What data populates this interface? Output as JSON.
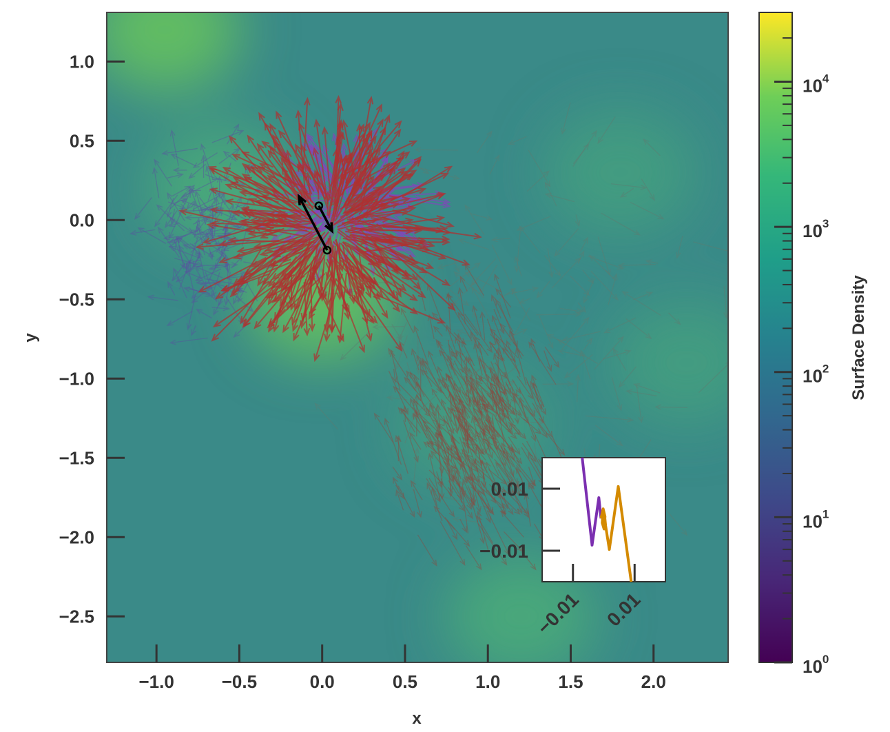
{
  "chart_data": {
    "type": "quiver",
    "xlabel": "x",
    "ylabel": "y",
    "xlim": [
      -1.3,
      2.45
    ],
    "ylim": [
      -2.79,
      1.31
    ],
    "xticks": [
      -1.0,
      -0.5,
      0.0,
      0.5,
      1.0,
      1.5,
      2.0
    ],
    "xtick_labels": [
      "−1.0",
      "−0.5",
      "0.0",
      "0.5",
      "1.0",
      "1.5",
      "2.0"
    ],
    "yticks": [
      1.0,
      0.5,
      0.0,
      -0.5,
      -1.0,
      -1.5,
      -2.0,
      -2.5
    ],
    "ytick_labels": [
      "1.0",
      "0.5",
      "0.0",
      "−0.5",
      "−1.0",
      "−1.5",
      "−2.0",
      "−2.5"
    ],
    "colorbar": {
      "label": "Surface Density",
      "scale": "log",
      "range": [
        1,
        30000
      ],
      "ticks": [
        1,
        10,
        100,
        1000,
        10000
      ],
      "tick_base": "10",
      "tick_exponents": [
        "0",
        "1",
        "2",
        "3",
        "4"
      ],
      "colormap": "viridis"
    },
    "background_density_ridges": [
      {
        "x": -0.95,
        "y": 1.2,
        "log_density": 3.4
      },
      {
        "x": 0.0,
        "y": -0.5,
        "log_density": 3.3
      },
      {
        "x": -0.6,
        "y": 0.2,
        "log_density": 3.0
      },
      {
        "x": 0.9,
        "y": -1.3,
        "log_density": 2.8
      },
      {
        "x": 1.2,
        "y": -2.5,
        "log_density": 2.9
      },
      {
        "x": 1.8,
        "y": 0.3,
        "log_density": 2.6
      },
      {
        "x": 2.2,
        "y": -0.9,
        "log_density": 2.7
      }
    ],
    "arrow_fields": [
      {
        "name": "red-particles",
        "color": "#b03030",
        "center": [
          0.05,
          -0.05
        ],
        "spread": [
          0.25,
          0.25
        ],
        "count": 350,
        "mean_length": 0.35
      },
      {
        "name": "purple-particles",
        "color": "#8a3fc0",
        "center": [
          0.15,
          0.1
        ],
        "spread": [
          0.15,
          0.15
        ],
        "count": 120,
        "mean_length": 0.25
      },
      {
        "name": "blue-gas",
        "color": "#5a50a0",
        "center": [
          -0.7,
          -0.1
        ],
        "spread": [
          0.2,
          0.35
        ],
        "count": 180,
        "mean_length": 0.15
      },
      {
        "name": "red-stream",
        "color": "#8a4a40",
        "center": [
          0.9,
          -1.3
        ],
        "spread": [
          0.3,
          0.45
        ],
        "count": 400,
        "mean_length": 0.2
      },
      {
        "name": "gray-gas",
        "color": "#607a70",
        "center": [
          1.3,
          -0.6
        ],
        "spread": [
          0.7,
          0.8
        ],
        "count": 150,
        "mean_length": 0.18
      }
    ],
    "highlight_arrows": [
      {
        "from": [
          0.03,
          -0.19
        ],
        "to": [
          -0.14,
          0.15
        ],
        "color": "#000000"
      },
      {
        "from": [
          -0.02,
          0.09
        ],
        "to": [
          0.06,
          -0.07
        ],
        "color": "#000000"
      }
    ],
    "inset": {
      "xlim": [
        -0.02,
        0.02
      ],
      "ylim": [
        -0.02,
        0.02
      ],
      "xticks": [
        -0.01,
        0.01
      ],
      "xtick_labels": [
        "−0.01",
        "0.01"
      ],
      "yticks": [
        0.01,
        -0.01
      ],
      "ytick_labels": [
        "0.01",
        "−0.01"
      ],
      "series": [
        {
          "name": "purple",
          "color": "#7b2fb0",
          "x": [
            -0.007,
            -0.0038,
            -0.0016,
            -0.0009
          ],
          "y": [
            0.02,
            -0.0082,
            0.0071,
            0.0004
          ]
        },
        {
          "name": "orange",
          "color": "#d48a00",
          "x": [
            -0.0009,
            -0.0002,
            0.0004,
            0.0001,
            -0.0005,
            -0.0003,
            0.0003,
            0.0006,
            0.0018,
            0.0047,
            0.0089
          ],
          "y": [
            0.0004,
            0.0035,
            0.001,
            -0.003,
            -0.001,
            0.002,
            0.001,
            -0.002,
            -0.0096,
            0.0107,
            -0.02
          ]
        }
      ]
    }
  }
}
